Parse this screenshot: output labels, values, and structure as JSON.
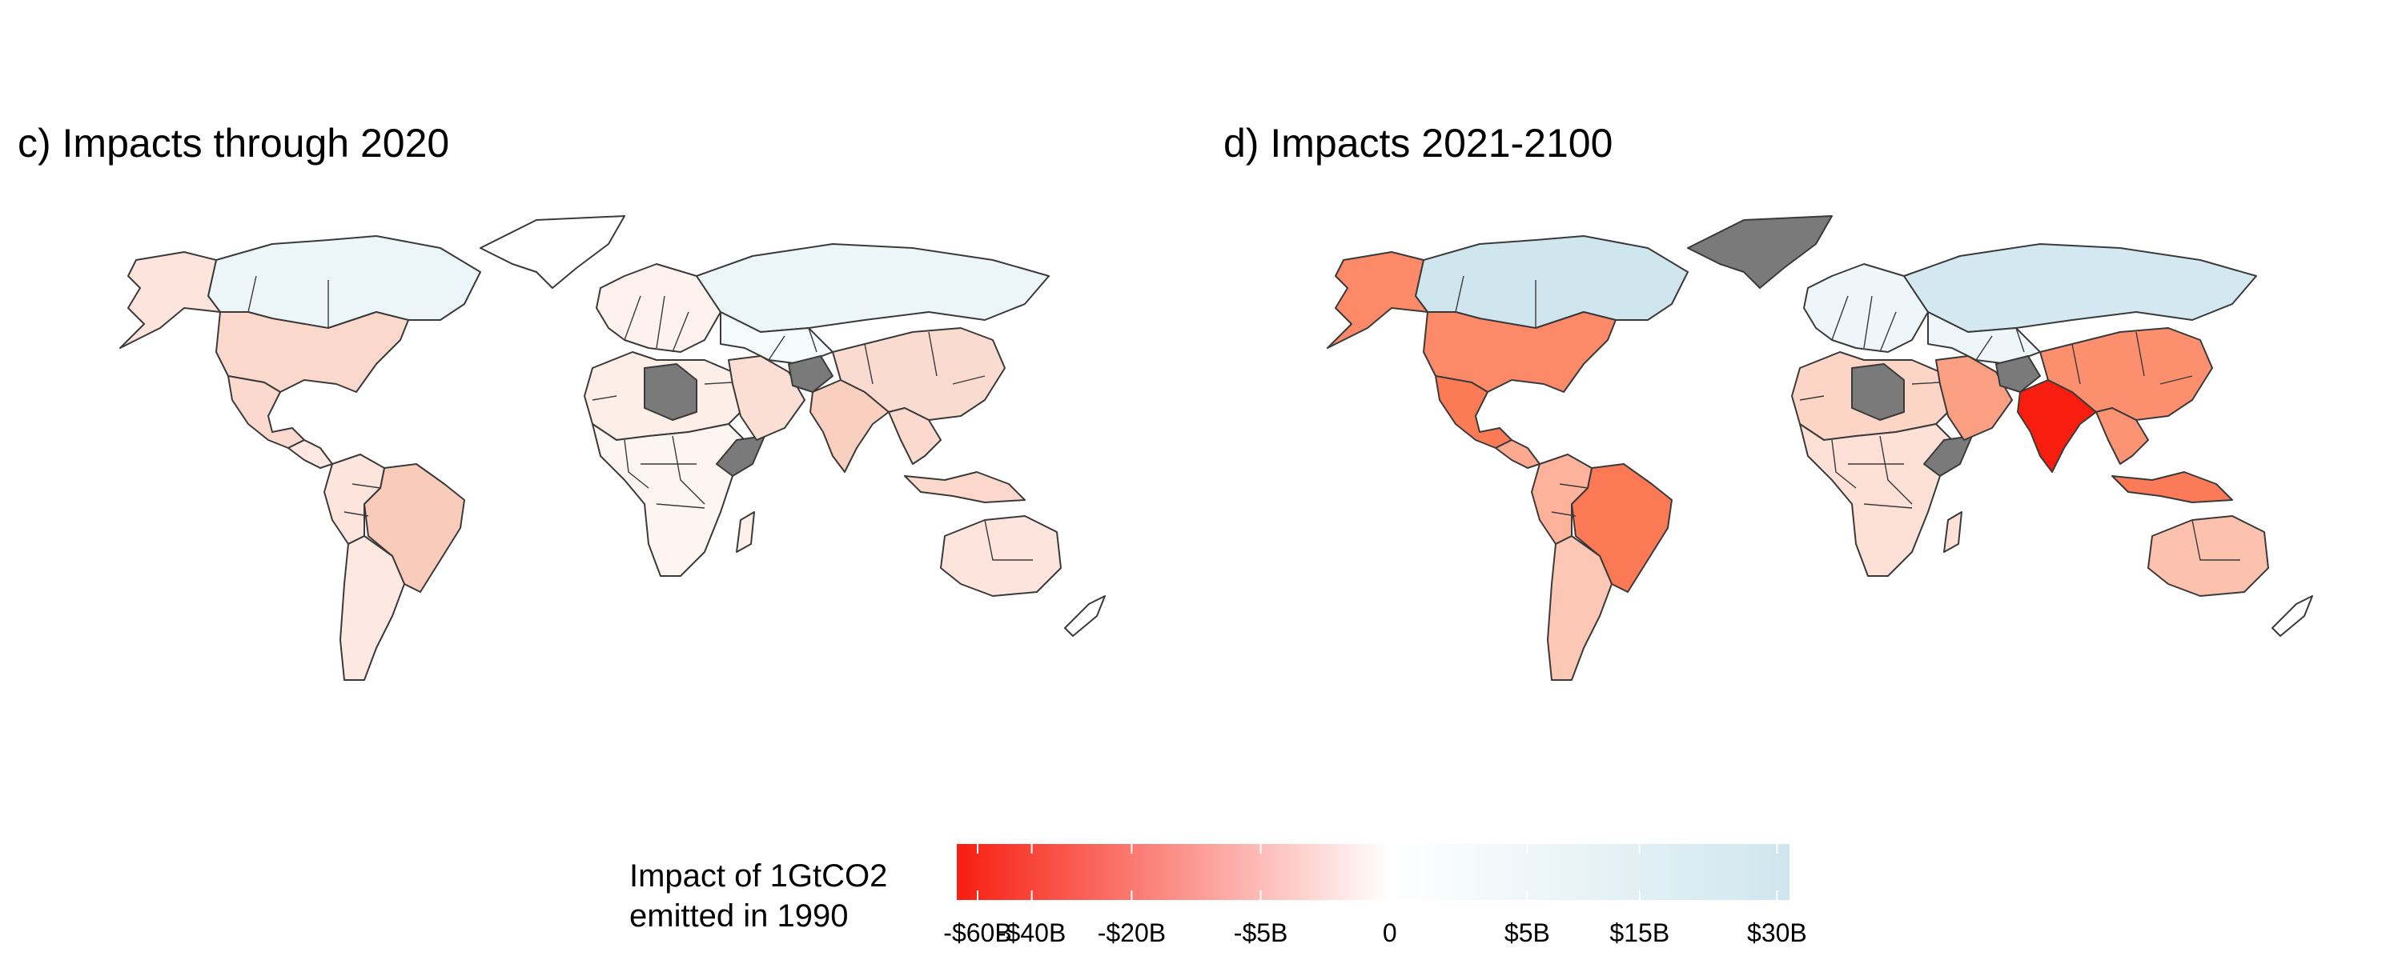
{
  "panels": [
    {
      "title": "c) Impacts through 2020",
      "regions": [
        {
          "name": "Canada",
          "color": "#ecf5f8",
          "impact": "+"
        },
        {
          "name": "Alaska",
          "color": "#fde4dc",
          "impact": "-"
        },
        {
          "name": "United States",
          "color": "#fbd8cc",
          "impact": "-"
        },
        {
          "name": "Mexico",
          "color": "#fcd9ce",
          "impact": "-"
        },
        {
          "name": "Greenland",
          "color": "#ffffff",
          "impact": "n/a"
        },
        {
          "name": "Central America",
          "color": "#fde7e0",
          "impact": "-"
        },
        {
          "name": "Brazil",
          "color": "#f9cbbb",
          "impact": "-"
        },
        {
          "name": "Andean South America",
          "color": "#fde4dc",
          "impact": "-"
        },
        {
          "name": "Southern South America",
          "color": "#fde9e2",
          "impact": "-"
        },
        {
          "name": "Europe",
          "color": "#fdf2ee",
          "impact": "-"
        },
        {
          "name": "Russia",
          "color": "#ecf5f8",
          "impact": "+"
        },
        {
          "name": "Central Asia",
          "color": "#f5fafb",
          "impact": "+"
        },
        {
          "name": "North Africa",
          "color": "#fdeee8",
          "impact": "-"
        },
        {
          "name": "Libya",
          "color": "#7a7a7a",
          "impact": "no data"
        },
        {
          "name": "Sub-Saharan Africa",
          "color": "#fef5f2",
          "impact": "-"
        },
        {
          "name": "Horn of Africa",
          "color": "#7a7a7a",
          "impact": "no data"
        },
        {
          "name": "Middle East",
          "color": "#fbdfd5",
          "impact": "-"
        },
        {
          "name": "Afghanistan",
          "color": "#7a7a7a",
          "impact": "no data"
        },
        {
          "name": "India",
          "color": "#f9cfbf",
          "impact": "-"
        },
        {
          "name": "China",
          "color": "#fadbd0",
          "impact": "-"
        },
        {
          "name": "Southeast Asia",
          "color": "#fbd9cd",
          "impact": "-"
        },
        {
          "name": "Indonesia",
          "color": "#fbd8cb",
          "impact": "-"
        },
        {
          "name": "Australia",
          "color": "#fde4dc",
          "impact": "-"
        },
        {
          "name": "Madagascar",
          "color": "#fdf0eb",
          "impact": "-"
        },
        {
          "name": "New Zealand",
          "color": "#ffffff",
          "impact": "~0"
        }
      ]
    },
    {
      "title": "d) Impacts 2021-2100",
      "regions": [
        {
          "name": "Canada",
          "color": "#cfe6ee",
          "impact": "+"
        },
        {
          "name": "Alaska",
          "color": "#fc8a68",
          "impact": "-"
        },
        {
          "name": "United States",
          "color": "#fc8a68",
          "impact": "-"
        },
        {
          "name": "Mexico",
          "color": "#fc7b57",
          "impact": "-"
        },
        {
          "name": "Greenland",
          "color": "#7a7a7a",
          "impact": "no data"
        },
        {
          "name": "Central America",
          "color": "#fda98f",
          "impact": "-"
        },
        {
          "name": "Brazil",
          "color": "#fb7a55",
          "impact": "-"
        },
        {
          "name": "Andean South America",
          "color": "#fdb29b",
          "impact": "-"
        },
        {
          "name": "Southern South America",
          "color": "#fdc7b6",
          "impact": "-"
        },
        {
          "name": "Europe",
          "color": "#eef6f9",
          "impact": "+"
        },
        {
          "name": "Russia",
          "color": "#d3e8f0",
          "impact": "+"
        },
        {
          "name": "Central Asia",
          "color": "#eef6f9",
          "impact": "+"
        },
        {
          "name": "North Africa",
          "color": "#fdd5c7",
          "impact": "-"
        },
        {
          "name": "Libya",
          "color": "#7a7a7a",
          "impact": "no data"
        },
        {
          "name": "Sub-Saharan Africa",
          "color": "#fde0d6",
          "impact": "-"
        },
        {
          "name": "Horn of Africa",
          "color": "#7a7a7a",
          "impact": "no data"
        },
        {
          "name": "Middle East",
          "color": "#fb9f82",
          "impact": "-"
        },
        {
          "name": "Afghanistan",
          "color": "#7a7a7a",
          "impact": "no data"
        },
        {
          "name": "India",
          "color": "#f71e10",
          "impact": "-"
        },
        {
          "name": "China",
          "color": "#fc8f6d",
          "impact": "-"
        },
        {
          "name": "Southeast Asia",
          "color": "#fc9373",
          "impact": "-"
        },
        {
          "name": "Indonesia",
          "color": "#fb7a58",
          "impact": "-"
        },
        {
          "name": "Australia",
          "color": "#fdc2ad",
          "impact": "-"
        },
        {
          "name": "Madagascar",
          "color": "#fde0d6",
          "impact": "-"
        },
        {
          "name": "New Zealand",
          "color": "#ffffff",
          "impact": "~0"
        }
      ]
    }
  ],
  "legend": {
    "title": "Impact of 1GtCO2\nemitted in 1990",
    "colors": {
      "most_negative": "#f71e10",
      "zero": "#ffffff",
      "most_positive": "#cfe6ee",
      "no_data": "#7a7a7a"
    },
    "ticks": [
      {
        "label": "-$60B",
        "frac": 0.025
      },
      {
        "label": "-$40B",
        "frac": 0.09
      },
      {
        "label": "-$20B",
        "frac": 0.21
      },
      {
        "label": "-$5B",
        "frac": 0.365
      },
      {
        "label": "0",
        "frac": 0.52
      },
      {
        "label": "$5B",
        "frac": 0.685
      },
      {
        "label": "$15B",
        "frac": 0.82
      },
      {
        "label": "$30B",
        "frac": 0.985
      }
    ]
  }
}
